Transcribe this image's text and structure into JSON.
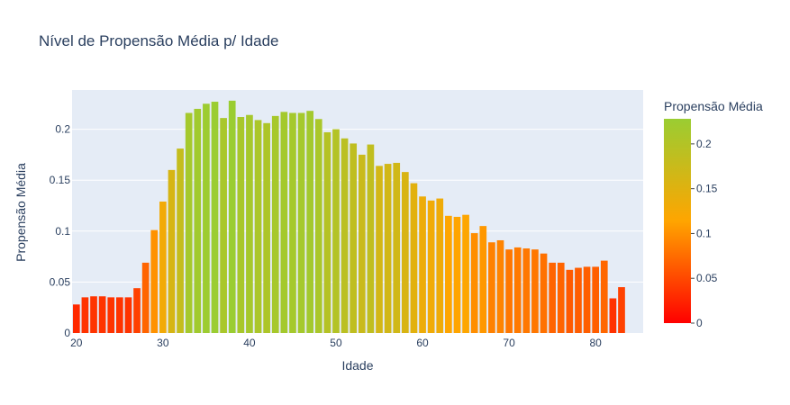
{
  "chart_data": {
    "type": "bar",
    "title": "Nível de Propensão Média p/ Idade",
    "xlabel": "Idade",
    "ylabel": "Propensão Média",
    "xlim": [
      19.5,
      85.5
    ],
    "ylim": [
      0,
      0.2385
    ],
    "x_ticks": [
      "20",
      "30",
      "40",
      "50",
      "60",
      "70",
      "80"
    ],
    "y_ticks": [
      "0",
      "0.05",
      "0.1",
      "0.15",
      "0.2"
    ],
    "x": [
      20,
      21,
      22,
      23,
      24,
      25,
      26,
      27,
      28,
      29,
      30,
      31,
      32,
      33,
      34,
      35,
      36,
      37,
      38,
      39,
      40,
      41,
      42,
      43,
      44,
      45,
      46,
      47,
      48,
      49,
      50,
      51,
      52,
      53,
      54,
      55,
      56,
      57,
      58,
      59,
      60,
      61,
      62,
      63,
      64,
      65,
      66,
      67,
      68,
      69,
      70,
      71,
      72,
      73,
      74,
      75,
      76,
      77,
      78,
      79,
      80,
      81,
      82,
      83
    ],
    "values": [
      0.028,
      0.035,
      0.036,
      0.036,
      0.035,
      0.035,
      0.035,
      0.044,
      0.069,
      0.101,
      0.129,
      0.16,
      0.181,
      0.216,
      0.22,
      0.225,
      0.227,
      0.211,
      0.228,
      0.212,
      0.214,
      0.209,
      0.206,
      0.213,
      0.217,
      0.216,
      0.216,
      0.218,
      0.21,
      0.197,
      0.2,
      0.191,
      0.186,
      0.175,
      0.185,
      0.164,
      0.166,
      0.167,
      0.158,
      0.147,
      0.134,
      0.13,
      0.132,
      0.115,
      0.114,
      0.116,
      0.098,
      0.105,
      0.089,
      0.091,
      0.082,
      0.084,
      0.083,
      0.082,
      0.078,
      0.069,
      0.069,
      0.062,
      0.064,
      0.065,
      0.065,
      0.071,
      0.034,
      0.045
    ],
    "colorbar": {
      "title": "Propensão Média",
      "ticks": [
        "0",
        "0.05",
        "0.1",
        "0.15",
        "0.2"
      ],
      "range": [
        0,
        0.228
      ],
      "colors": [
        "#ff0000",
        "#ffa500",
        "#9acd32"
      ]
    },
    "grid": true,
    "background": "#e5ecf6"
  }
}
